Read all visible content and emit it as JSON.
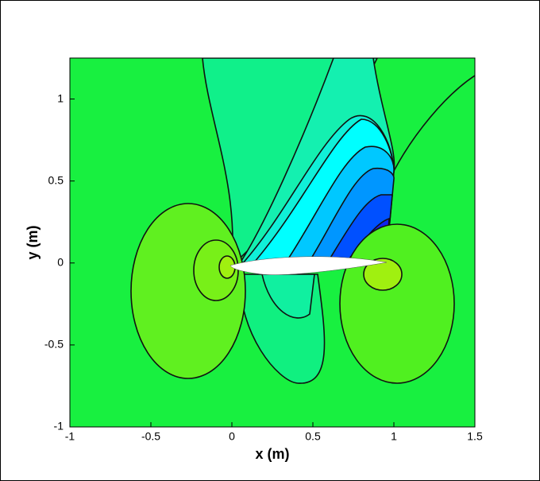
{
  "chart_data": {
    "type": "contour",
    "x_label": "x (m)",
    "y_label": "y (m)",
    "xlim": [
      -1,
      1.5
    ],
    "ylim": [
      -1,
      1.25
    ],
    "xticks": [
      -1,
      -0.5,
      0,
      0.5,
      1,
      1.5
    ],
    "yticks": [
      -1,
      -0.5,
      0,
      0.5,
      1
    ]
  }
}
